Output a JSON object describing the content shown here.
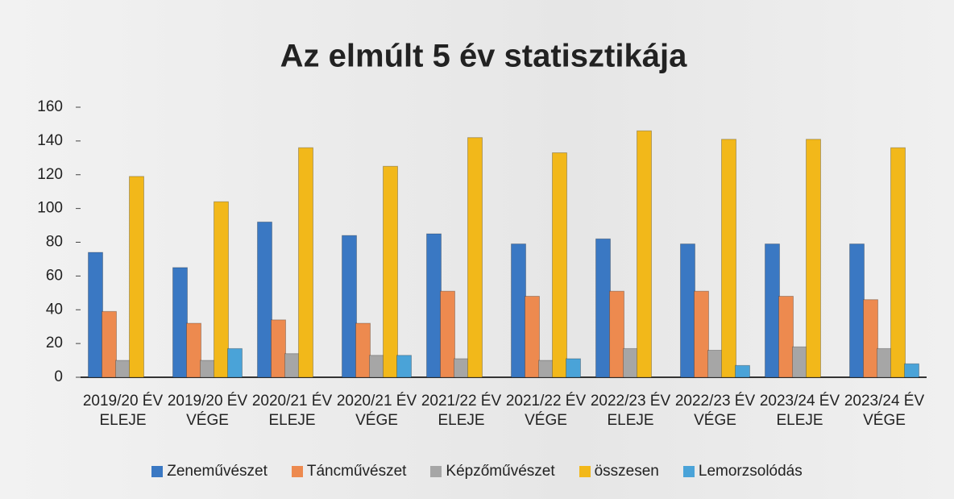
{
  "chart_data": {
    "type": "bar",
    "title": "Az elmúlt 5 év statisztikája",
    "categories": [
      "2019/20 ÉV ELEJE",
      "2019/20 ÉV VÉGE",
      "2020/21 ÉV ELEJE",
      "2020/21 ÉV VÉGE",
      "2021/22 ÉV ELEJE",
      "2021/22 ÉV VÉGE",
      "2022/23 ÉV ELEJE",
      "2022/23 ÉV VÉGE",
      "2023/24 ÉV ELEJE",
      "2023/24 ÉV VÉGE"
    ],
    "series": [
      {
        "name": "Zeneművészet",
        "color": "#3a78c3",
        "values": [
          74,
          65,
          92,
          84,
          85,
          79,
          82,
          79,
          79,
          79
        ]
      },
      {
        "name": "Táncművészet",
        "color": "#ed8a4f",
        "values": [
          39,
          32,
          34,
          32,
          51,
          48,
          51,
          51,
          48,
          46
        ]
      },
      {
        "name": "Képzőművészet",
        "color": "#a6a6a6",
        "values": [
          10,
          10,
          14,
          13,
          11,
          10,
          17,
          16,
          18,
          17
        ]
      },
      {
        "name": "összesen",
        "color": "#f2b81a",
        "values": [
          119,
          104,
          136,
          125,
          142,
          133,
          146,
          141,
          141,
          136
        ]
      },
      {
        "name": "Lemorzsolódás",
        "color": "#4aa3d8",
        "values": [
          null,
          17,
          null,
          13,
          null,
          11,
          null,
          7,
          null,
          8
        ]
      }
    ],
    "ylim": [
      0,
      160
    ],
    "yticks": [
      0,
      20,
      40,
      60,
      80,
      100,
      120,
      140,
      160
    ],
    "legend": "bottom"
  }
}
